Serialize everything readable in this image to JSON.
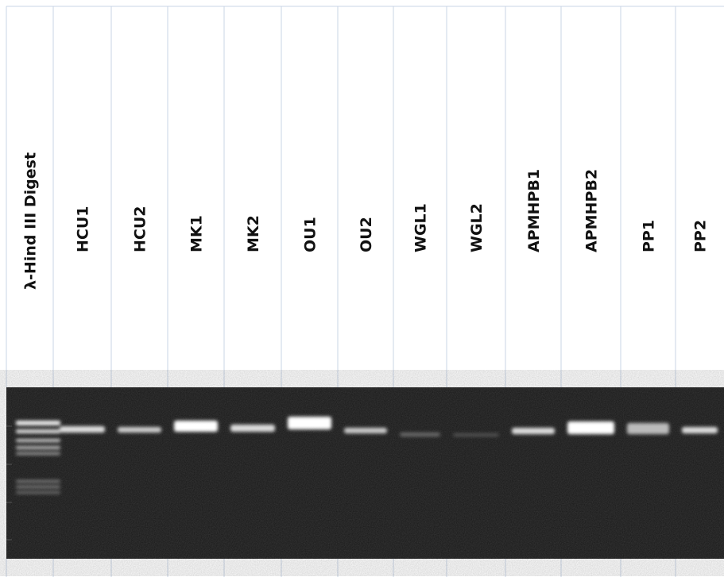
{
  "lanes": [
    "λ-Hind III Digest",
    "HCU1",
    "HCU2",
    "MK1",
    "MK2",
    "OU1",
    "OU2",
    "WGL1",
    "WGL2",
    "APMHPB1",
    "APMHPB2",
    "PP1",
    "PP2"
  ]
}
